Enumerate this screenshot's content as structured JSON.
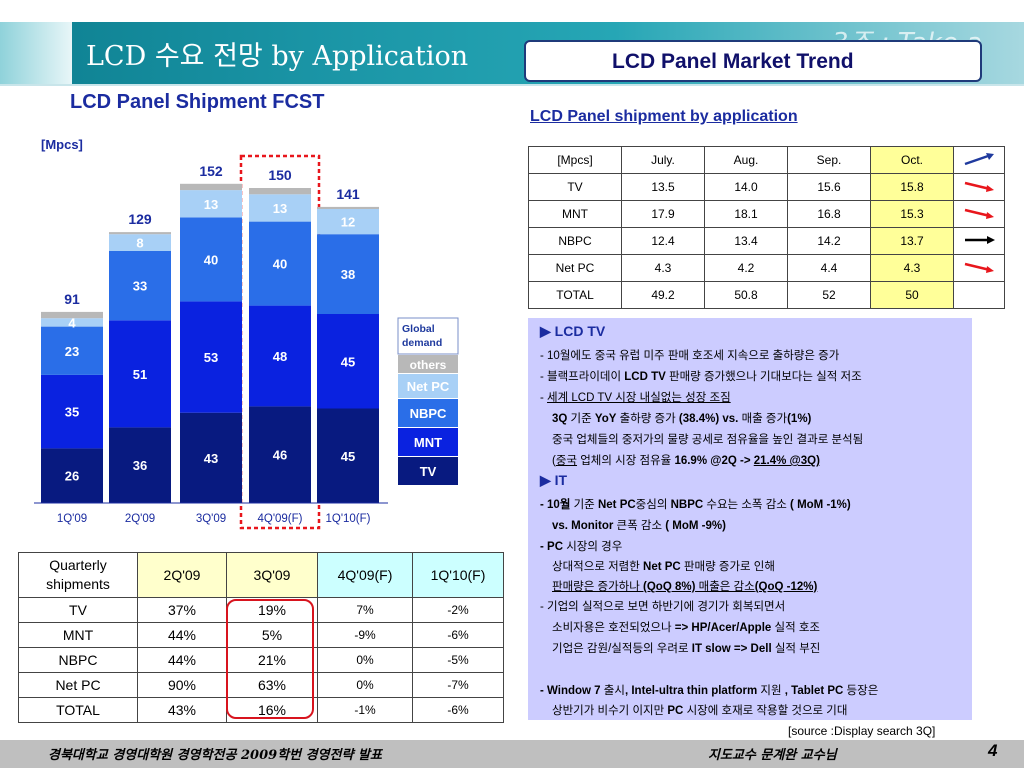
{
  "header": {
    "title": "LCD 수요 전망 by Application",
    "box_title": "LCD  Panel  Market  Trend",
    "watermark": "3조 : Take a"
  },
  "chart_data": {
    "type": "bar",
    "title": "LCD  Panel  Shipment FCST",
    "unit_label": "[Mpcs]",
    "categories": [
      "1Q'09",
      "2Q'09",
      "3Q'09",
      "4Q'09(F)",
      "1Q'10(F)"
    ],
    "totals": [
      "91",
      "129",
      "152",
      "150",
      "141"
    ],
    "series": [
      {
        "name": "TV",
        "values": [
          26,
          36,
          43,
          46,
          45
        ],
        "color": "#081a80"
      },
      {
        "name": "MNT",
        "values": [
          35,
          51,
          53,
          48,
          45
        ],
        "color": "#0a22e0"
      },
      {
        "name": "NBPC",
        "values": [
          23,
          33,
          40,
          40,
          38
        ],
        "color": "#2a6ee8"
      },
      {
        "name": "Net PC",
        "values": [
          4,
          8,
          13,
          13,
          12
        ],
        "color": "#a8d0f6"
      },
      {
        "name": "others",
        "values": [
          3,
          1,
          3,
          3,
          1
        ],
        "color": "#b8b8b8"
      }
    ],
    "series_labels": [
      [
        "26",
        "36",
        "43",
        "46",
        "45"
      ],
      [
        "35",
        "51",
        "53",
        "48",
        "45"
      ],
      [
        "23",
        "33",
        "40",
        "40",
        "38"
      ],
      [
        "4",
        "8",
        "13",
        "13",
        "12"
      ],
      [
        "",
        "",
        "",
        "",
        ""
      ]
    ],
    "legend_extra": "Global demand",
    "highlight_category": "4Q'09(F)",
    "legend_placement": "right",
    "ylim": [
      0,
      160
    ]
  },
  "table_right": {
    "title": "LCD Panel shipment  by application",
    "headers": [
      "[Mpcs]",
      "July.",
      "Aug.",
      "Sep.",
      "Oct."
    ],
    "rows": [
      {
        "label": "TV",
        "cells": [
          "13.5",
          "14.0",
          "15.6",
          "15.8"
        ],
        "trend": "up-right",
        "trend_color": "#e8161c"
      },
      {
        "label": "MNT",
        "cells": [
          "17.9",
          "18.1",
          "16.8",
          "15.3"
        ],
        "trend": "up-right",
        "trend_color": "#e8161c"
      },
      {
        "label": "NBPC",
        "cells": [
          "12.4",
          "13.4",
          "14.2",
          "13.7"
        ],
        "trend": "flat",
        "trend_color": "#000000"
      },
      {
        "label": "Net PC",
        "cells": [
          "4.3",
          "4.2",
          "4.4",
          "4.3"
        ],
        "trend": "up-right",
        "trend_color": "#e8161c"
      },
      {
        "label": "TOTAL",
        "cells": [
          "49.2",
          "50.8",
          "52",
          "50"
        ],
        "trend": "none",
        "trend_color": ""
      }
    ],
    "header_trend": "up",
    "header_trend_color": "#1f3a9e"
  },
  "textbox": {
    "lcd_head": "▶ LCD TV",
    "l1": "- 10월에도 중국 유럽 미주 판매 호조세 지속으로 출하량은  증가",
    "l2a": "- 블랙프라이데이 ",
    "l2b": "LCD TV",
    "l2c": " 판매량 증가했으나 기대보다는 실적 저조",
    "l3a": "- ",
    "l3b": "세계 LCD TV 시장 내실없는 성장 조짐",
    "l4a": "3Q",
    "l4b": " 기준 ",
    "l4c": "YoY",
    "l4d": " 출하량 증가 ",
    "l4e": "(38.4%)  vs.",
    "l4f": " 매출 증가",
    "l4g": "(1%)",
    "l5": "중국 업체들의 중저가의 물량 공세로 점유율을 높인 결과로 분석됨",
    "l6a": "(",
    "l6b": "중국",
    "l6c": " 업체의 시장 점유율 ",
    "l6d": "16.9% @2Q -> ",
    "l6e": "21.4% @3Q)",
    "it_head": "▶ IT",
    "l7a": "- 10월",
    "l7b": " 기준 ",
    "l7c": "Net PC",
    "l7d": "중심의 ",
    "l7e": "NBPC",
    "l7f": " 수요는 소폭 감소 ",
    "l7g": "( MoM -1%)",
    "l8a": "vs.  Monitor",
    "l8b": " 큰폭 감소 ",
    "l8c": "( MoM -9%)",
    "l9a": "- PC",
    "l9b": " 시장의 경우",
    "l10a": "상대적으로 저렴한 ",
    "l10b": "Net PC",
    "l10c": " 판매량 증가로 인해",
    "l11a": "판매량은 증가하나 ",
    "l11b": "(QoQ 8%)",
    "l11c": "  매출은 감소",
    "l11d": "(QoQ -12%)",
    "l12": "- 기업의 실적으로 보면  하반기에 경기가 회복되면서",
    "l13a": "소비자용은 호전되었으나 ",
    "l13b": "=> HP/Acer/Apple",
    "l13c": " 실적 호조",
    "l14a": "기업은 감원/실적등의 우려로 ",
    "l14b": "IT slow => Dell",
    "l14c": " 실적 부진",
    "l15a": "- Window 7",
    "l15b": " 출시",
    "l15c": ", Intel-ultra thin platform",
    "l15d": " 지원 ",
    "l15e": ", Tablet PC",
    "l15f": " 등장은",
    "l16a": "상반기가 비수기 이지만 ",
    "l16b": "PC",
    "l16c": " 시장에 호재로 작용할 것으로 기대"
  },
  "source": "[source :Display search 3Q]",
  "table_bottom": {
    "header0": "Quarterly shipments",
    "headers": [
      "2Q'09",
      "3Q'09",
      "4Q'09(F)",
      "1Q'10(F)"
    ],
    "rows": [
      {
        "label": "TV",
        "cells": [
          "37%",
          "19%",
          "7%",
          "-2%"
        ]
      },
      {
        "label": "MNT",
        "cells": [
          "44%",
          "5%",
          "-9%",
          "-6%"
        ]
      },
      {
        "label": "NBPC",
        "cells": [
          "44%",
          "21%",
          "0%",
          "-5%"
        ]
      },
      {
        "label": "Net PC",
        "cells": [
          "90%",
          "63%",
          "0%",
          "-7%"
        ]
      },
      {
        "label": "TOTAL",
        "cells": [
          "43%",
          "16%",
          "-1%",
          "-6%"
        ]
      }
    ]
  },
  "footer": {
    "left_a": "경북대학교 경영대학원  경영학전공 ",
    "left_b": "2009",
    "left_c": "학번     경영전략 발표",
    "right": "지도교수   문계완 교수님",
    "page": "4"
  }
}
